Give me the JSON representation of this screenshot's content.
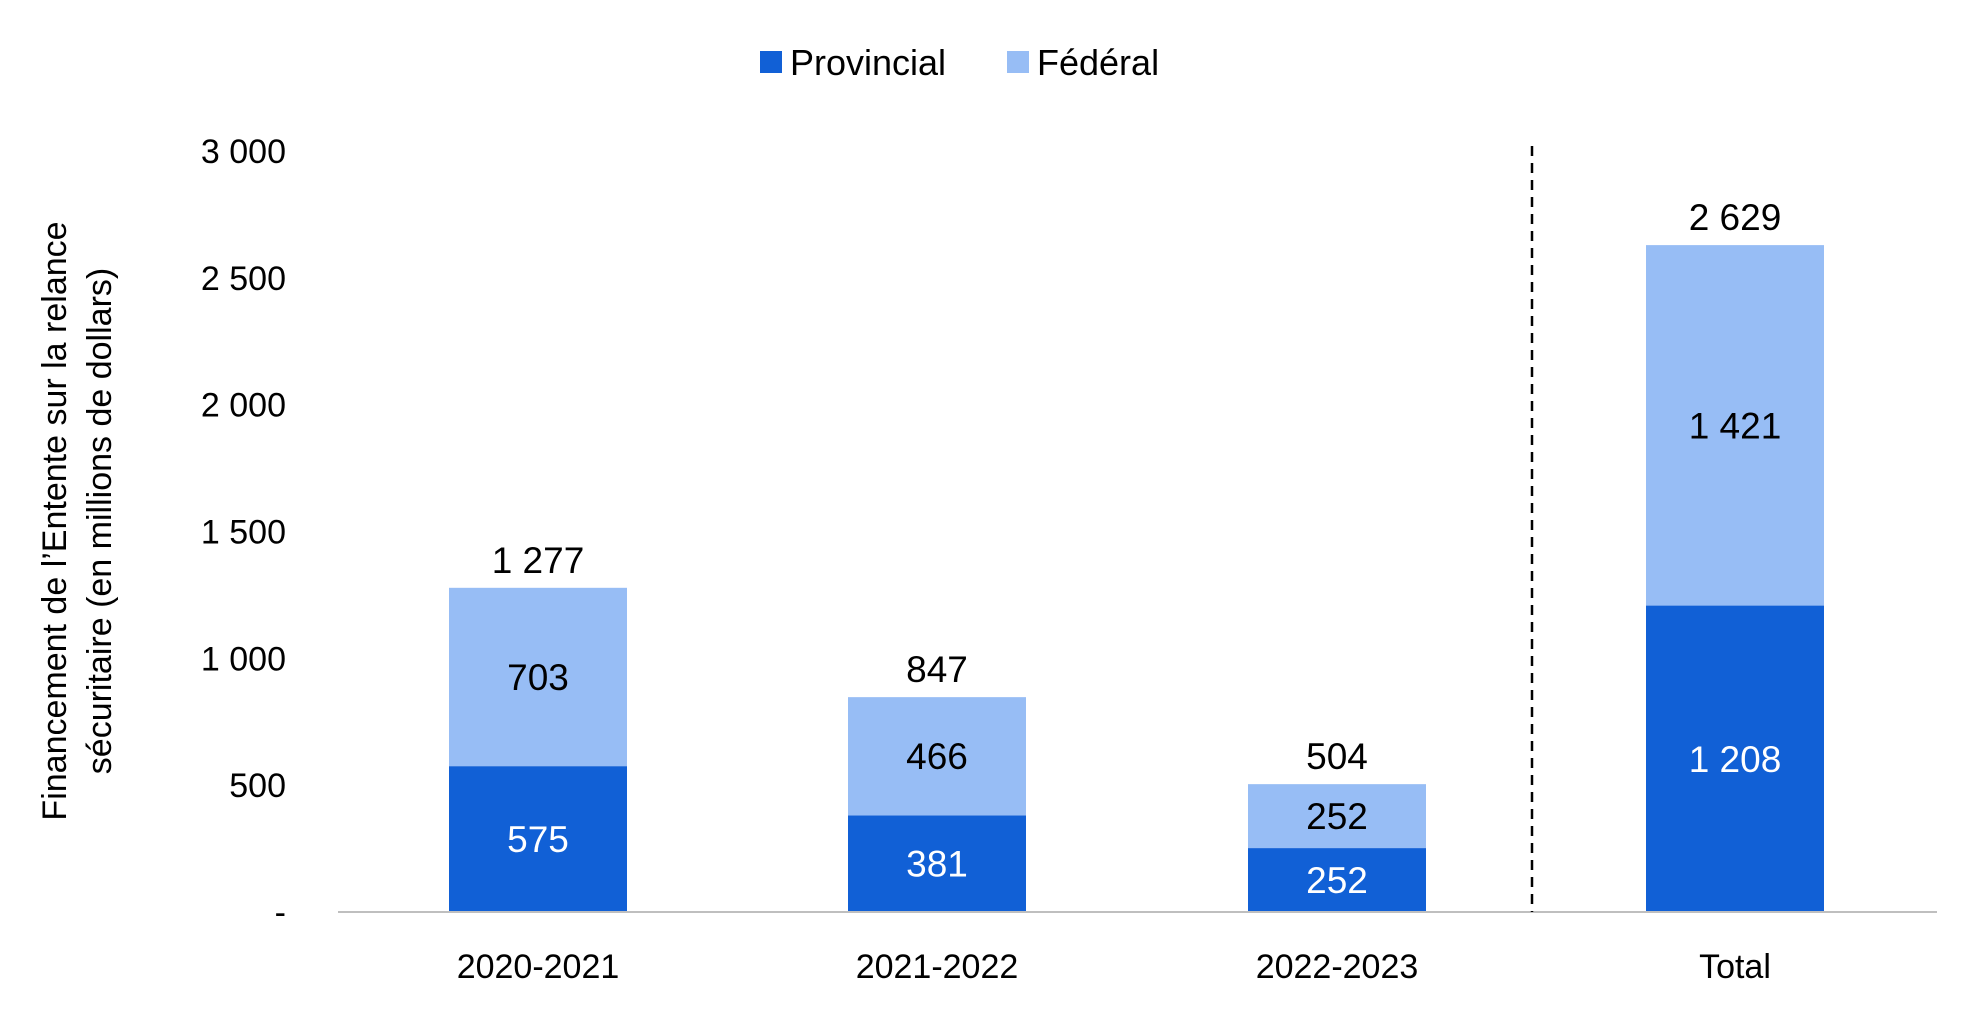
{
  "chart_data": {
    "type": "bar",
    "stacked": true,
    "categories": [
      "2020-2021",
      "2021-2022",
      "2022-2023",
      "Total"
    ],
    "series": [
      {
        "name": "Provincial",
        "values": [
          575,
          381,
          252,
          1208
        ],
        "labels": [
          "575",
          "381",
          "252",
          "1 208"
        ],
        "color": "#1160D6"
      },
      {
        "name": "Fédéral",
        "values": [
          703,
          466,
          252,
          1421
        ],
        "labels": [
          "703",
          "466",
          "252",
          "1 421"
        ],
        "color": "#97BDF5"
      }
    ],
    "totals": [
      1277,
      847,
      504,
      2629
    ],
    "total_labels": [
      "1 277",
      "847",
      "504",
      "2 629"
    ],
    "ylabel_lines": [
      "Financement de l’Entente sur la relance",
      "sécuritaire (en millions de dollars)"
    ],
    "ylim": [
      0,
      3000
    ],
    "yticks": [
      0,
      500,
      1000,
      1500,
      2000,
      2500,
      3000
    ],
    "ytick_labels": [
      "-",
      "500",
      "1 000",
      "1 500",
      "2 000",
      "2 500",
      "3 000"
    ],
    "grid": false,
    "legend_position": "top-center",
    "separator": "dashed line between 2022-2023 and Total"
  }
}
